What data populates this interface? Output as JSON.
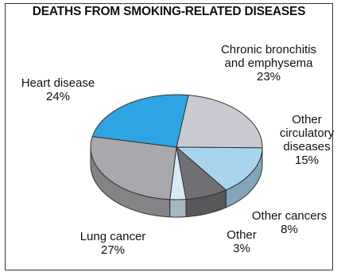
{
  "chart_data": {
    "type": "pie",
    "title": "DEATHS FROM SMOKING-RELATED DISEASES",
    "slices": [
      {
        "lines": [
          "Chronic bronchitis",
          "and emphysema"
        ],
        "value": 23,
        "value_label": "23%",
        "color": "#c9c9d1"
      },
      {
        "lines": [
          "Other",
          "circulatory",
          "diseases"
        ],
        "value": 15,
        "value_label": "15%",
        "color": "#a8d4ee"
      },
      {
        "lines": [
          "Other cancers"
        ],
        "value": 8,
        "value_label": "8%",
        "color": "#707074"
      },
      {
        "lines": [
          "Other"
        ],
        "value": 3,
        "value_label": "3%",
        "color": "#d5ebf7"
      },
      {
        "lines": [
          "Lung cancer"
        ],
        "value": 27,
        "value_label": "27%",
        "color": "#a9a9ad"
      },
      {
        "lines": [
          "Heart disease"
        ],
        "value": 24,
        "value_label": "24%",
        "color": "#2fa4e3"
      }
    ]
  }
}
